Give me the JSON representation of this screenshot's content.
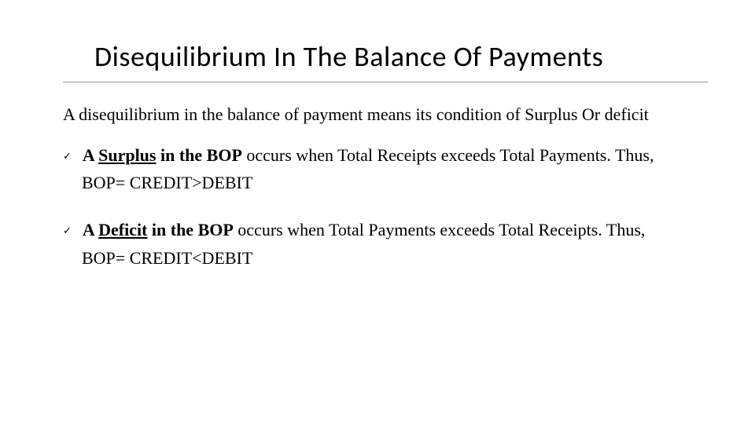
{
  "slide": {
    "title": "Disequilibrium In The Balance Of Payments",
    "intro": "A disequilibrium in the balance of payment means its condition of Surplus Or deficit",
    "bullets": [
      {
        "check": "✓",
        "lead_prefix": "A ",
        "lead_underlined": "Surplus",
        "lead_suffix": " in the BOP",
        "rest": " occurs when Total Receipts exceeds Total Payments. Thus,",
        "formula": "BOP= CREDIT>DEBIT"
      },
      {
        "check": "✓",
        "lead_prefix": "A ",
        "lead_underlined": "Deficit",
        "lead_suffix": " in the BOP",
        "rest": " occurs when Total Payments exceeds Total Receipts. Thus,",
        "formula": "BOP= CREDIT<DEBIT"
      }
    ]
  },
  "style": {
    "background_color": "#ffffff",
    "text_color": "#000000",
    "title_font": "Calibri",
    "title_fontsize": 36,
    "body_font": "Times New Roman",
    "body_fontsize": 22,
    "divider_color": "#999999",
    "check_fontsize": 13
  }
}
